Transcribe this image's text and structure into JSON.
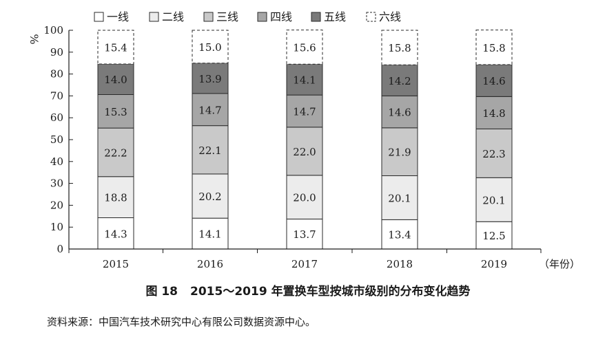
{
  "chart_data": {
    "type": "bar",
    "stacked": true,
    "categories": [
      "2015",
      "2016",
      "2017",
      "2018",
      "2019"
    ],
    "series": [
      {
        "name": "一线",
        "color": "#ffffff",
        "values": [
          14.3,
          14.1,
          13.7,
          13.4,
          12.5
        ]
      },
      {
        "name": "二线",
        "color": "#ececec",
        "values": [
          18.8,
          20.2,
          20.0,
          20.1,
          20.1
        ]
      },
      {
        "name": "三线",
        "color": "#c9c9c9",
        "values": [
          22.2,
          22.1,
          22.0,
          21.9,
          22.3
        ]
      },
      {
        "name": "四线",
        "color": "#a6a6a6",
        "values": [
          15.3,
          14.7,
          14.7,
          14.6,
          14.8
        ]
      },
      {
        "name": "五线",
        "color": "#7a7a7a",
        "values": [
          14.0,
          13.9,
          14.1,
          14.2,
          14.6
        ]
      },
      {
        "name": "六线",
        "color": "#ffffff",
        "dashed": true,
        "values": [
          15.4,
          15.0,
          15.6,
          15.8,
          15.8
        ]
      }
    ],
    "ylabel": "%",
    "xlabel": "（年份）",
    "ylim": [
      0,
      100
    ],
    "yticks": [
      0,
      10,
      20,
      30,
      40,
      50,
      60,
      70,
      80,
      90,
      100
    ],
    "legend_position": "top",
    "grid": false
  },
  "caption": {
    "number": "图 18",
    "text": "2015～2019 年置换车型按城市级别的分布变化趋势"
  },
  "source": "资料来源：中国汽车技术研究中心有限公司数据资源中心。"
}
